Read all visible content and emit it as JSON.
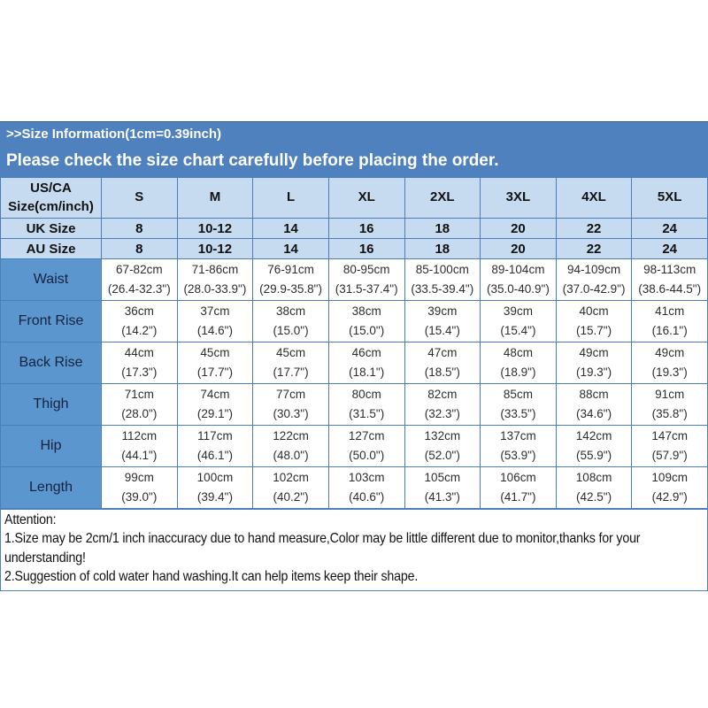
{
  "header": {
    "size_info": ">>Size Information(1cm=0.39inch)",
    "notice": "Please check the size chart carefully before placing the order."
  },
  "colors": {
    "banner_blue": "#4e81bd",
    "header_light_blue": "#c6daf0",
    "row_label_blue": "#5b96cf",
    "grid_border_blue": "#4a7ebb",
    "cell_white": "#ffffff"
  },
  "table": {
    "corner_line1": "US/CA",
    "corner_line2": "Size(cm/inch)",
    "sizes": [
      "S",
      "M",
      "L",
      "XL",
      "2XL",
      "3XL",
      "4XL",
      "5XL"
    ],
    "uk_row": {
      "label": "UK Size",
      "values": [
        "8",
        "10-12",
        "14",
        "16",
        "18",
        "20",
        "22",
        "24"
      ]
    },
    "au_row": {
      "label": "AU Size",
      "values": [
        "8",
        "10-12",
        "14",
        "16",
        "18",
        "20",
        "22",
        "24"
      ]
    },
    "measure_rows": [
      {
        "label": "Waist",
        "values": [
          [
            "67-82cm",
            "(26.4-32.3\")"
          ],
          [
            "71-86cm",
            "(28.0-33.9\")"
          ],
          [
            "76-91cm",
            "(29.9-35.8\")"
          ],
          [
            "80-95cm",
            "(31.5-37.4\")"
          ],
          [
            "85-100cm",
            "(33.5-39.4\")"
          ],
          [
            "89-104cm",
            "(35.0-40.9\")"
          ],
          [
            "94-109cm",
            "(37.0-42.9\")"
          ],
          [
            "98-113cm",
            "(38.6-44.5\")"
          ]
        ]
      },
      {
        "label": "Front Rise",
        "values": [
          [
            "36cm",
            "(14.2\")"
          ],
          [
            "37cm",
            "(14.6\")"
          ],
          [
            "38cm",
            "(15.0\")"
          ],
          [
            "38cm",
            "(15.0\")"
          ],
          [
            "39cm",
            "(15.4\")"
          ],
          [
            "39cm",
            "(15.4\")"
          ],
          [
            "40cm",
            "(15.7\")"
          ],
          [
            "41cm",
            "(16.1\")"
          ]
        ]
      },
      {
        "label": "Back Rise",
        "values": [
          [
            "44cm",
            "(17.3\")"
          ],
          [
            "45cm",
            "(17.7\")"
          ],
          [
            "45cm",
            "(17.7\")"
          ],
          [
            "46cm",
            "(18.1\")"
          ],
          [
            "47cm",
            "(18.5\")"
          ],
          [
            "48cm",
            "(18.9\")"
          ],
          [
            "49cm",
            "(19.3\")"
          ],
          [
            "49cm",
            "(19.3\")"
          ]
        ]
      },
      {
        "label": "Thigh",
        "values": [
          [
            "71cm",
            "(28.0\")"
          ],
          [
            "74cm",
            "(29.1\")"
          ],
          [
            "77cm",
            "(30.3\")"
          ],
          [
            "80cm",
            "(31.5\")"
          ],
          [
            "82cm",
            "(32.3\")"
          ],
          [
            "85cm",
            "(33.5\")"
          ],
          [
            "88cm",
            "(34.6\")"
          ],
          [
            "91cm",
            "(35.8\")"
          ]
        ]
      },
      {
        "label": "Hip",
        "values": [
          [
            "112cm",
            "(44.1\")"
          ],
          [
            "117cm",
            "(46.1\")"
          ],
          [
            "122cm",
            "(48.0\")"
          ],
          [
            "127cm",
            "(50.0\")"
          ],
          [
            "132cm",
            "(52.0\")"
          ],
          [
            "137cm",
            "(53.9\")"
          ],
          [
            "142cm",
            "(55.9\")"
          ],
          [
            "147cm",
            "(57.9\")"
          ]
        ]
      },
      {
        "label": "Length",
        "values": [
          [
            "99cm",
            "(39.0\")"
          ],
          [
            "100cm",
            "(39.4\")"
          ],
          [
            "102cm",
            "(40.2\")"
          ],
          [
            "103cm",
            "(40.6\")"
          ],
          [
            "105cm",
            "(41.3\")"
          ],
          [
            "106cm",
            "(41.7\")"
          ],
          [
            "108cm",
            "(42.5\")"
          ],
          [
            "109cm",
            "(42.9\")"
          ]
        ]
      }
    ]
  },
  "attention": {
    "title": "Attention:",
    "line1": "1.Size may be 2cm/1 inch inaccuracy due to hand measure,Color may be little different due to monitor,thanks for your understanding!",
    "line2": "2.Suggestion of cold water hand washing.It can help items keep their shape."
  }
}
